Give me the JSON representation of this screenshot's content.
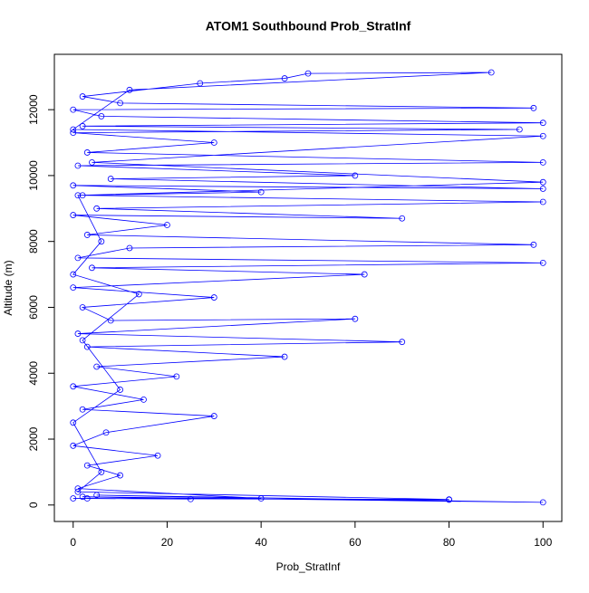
{
  "chart_data": {
    "type": "line",
    "title": "ATOM1 Southbound Prob_StratInf",
    "xlabel": "Prob_StratInf",
    "ylabel": "Altitude (m)",
    "color": "#0000ff",
    "xlim": [
      -4,
      104
    ],
    "ylim": [
      -500,
      13680
    ],
    "xticks": [
      0,
      20,
      40,
      60,
      80,
      100
    ],
    "yticks": [
      0,
      2000,
      4000,
      6000,
      8000,
      10000,
      12000
    ],
    "x": [
      80,
      0,
      25,
      2,
      100,
      5,
      40,
      1,
      10,
      3,
      18,
      0,
      7,
      30,
      2,
      15,
      0,
      22,
      5,
      45,
      3,
      70,
      1,
      60,
      8,
      2,
      30,
      0,
      62,
      4,
      100,
      1,
      12,
      98,
      3,
      20,
      0,
      70,
      5,
      100,
      2,
      40,
      0,
      100,
      8,
      60,
      1,
      100,
      3,
      30,
      0,
      95,
      2,
      100,
      6,
      0,
      98,
      10,
      2,
      27,
      45,
      50,
      89,
      12,
      0,
      100,
      4,
      100,
      1,
      6,
      0,
      14,
      2,
      10,
      0,
      6,
      1,
      80,
      3
    ],
    "values": [
      160,
      200,
      180,
      250,
      80,
      300,
      200,
      500,
      900,
      1200,
      1500,
      1800,
      2200,
      2700,
      2900,
      3200,
      3600,
      3900,
      4200,
      4500,
      4800,
      4950,
      5200,
      5650,
      5600,
      6000,
      6300,
      6600,
      7000,
      7200,
      7350,
      7500,
      7800,
      7900,
      8200,
      8500,
      8800,
      8700,
      9000,
      9200,
      9400,
      9500,
      9700,
      9600,
      9900,
      10000,
      10300,
      10400,
      10700,
      11000,
      11300,
      11400,
      11500,
      11600,
      11800,
      12000,
      12050,
      12200,
      12400,
      12800,
      12950,
      13100,
      13130,
      12600,
      11400,
      11200,
      10400,
      9800,
      9400,
      8000,
      7000,
      6400,
      5000,
      3500,
      2500,
      1000,
      400,
      170,
      200
    ]
  }
}
